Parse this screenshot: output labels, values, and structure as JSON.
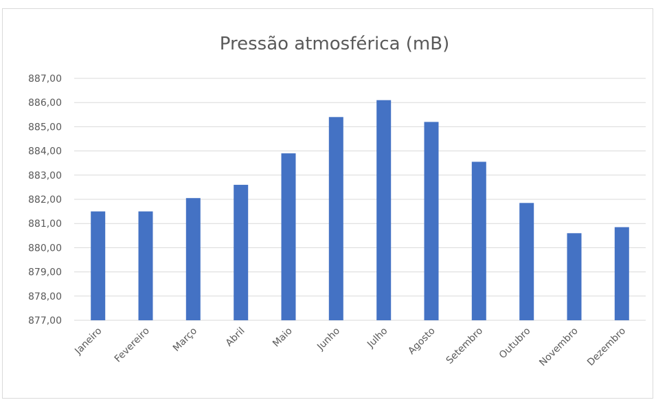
{
  "chart_data": {
    "type": "bar",
    "title": "Pressão atmosférica (mB)",
    "xlabel": "",
    "ylabel": "",
    "categories": [
      "Janeiro",
      "Fevereiro",
      "Março",
      "Abril",
      "Maio",
      "Junho",
      "Julho",
      "Agosto",
      "Setembro",
      "Outubro",
      "Novembro",
      "Dezembro"
    ],
    "series": [
      {
        "values": [
          881.5,
          881.5,
          882.05,
          882.6,
          883.9,
          885.4,
          886.1,
          885.2,
          883.55,
          881.85,
          880.6,
          880.85
        ],
        "color": "#4472c4"
      }
    ],
    "ylim": [
      877,
      887
    ],
    "yticks": [
      "877,00",
      "878,00",
      "879,00",
      "880,00",
      "881,00",
      "882,00",
      "883,00",
      "884,00",
      "885,00",
      "886,00",
      "887,00"
    ],
    "grid": true,
    "legend": "none"
  },
  "colors": {
    "bar": "#4472c4",
    "gridline": "#d9d9d9",
    "text": "#595959",
    "border": "#d9d9d9"
  }
}
